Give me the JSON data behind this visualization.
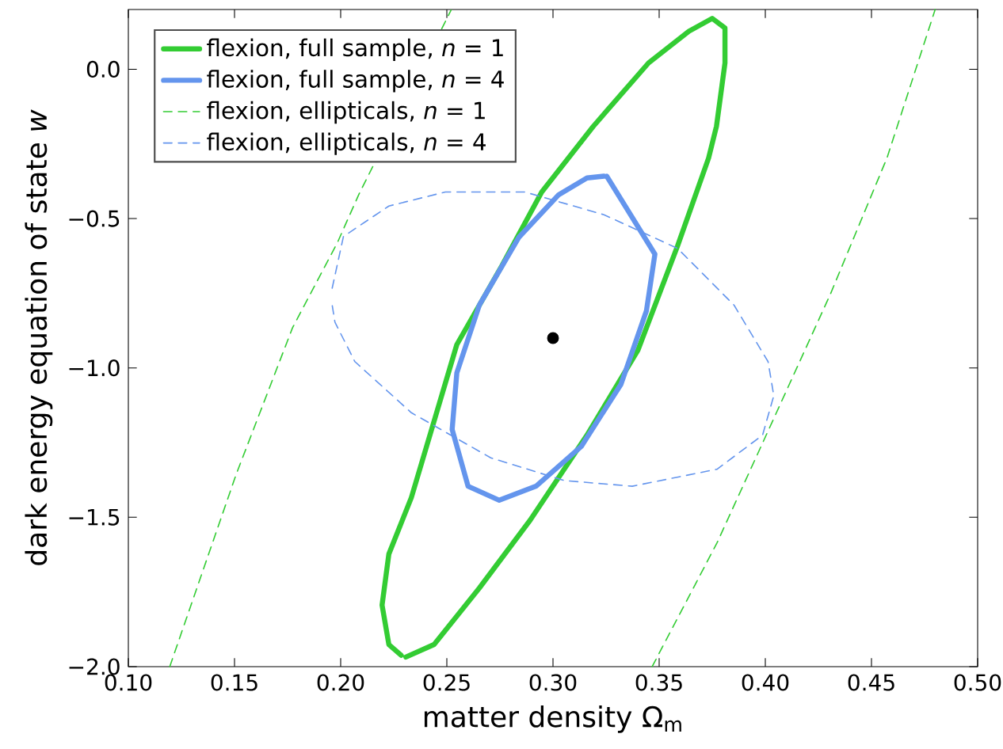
{
  "chart_data": {
    "type": "line",
    "xlabel": "matter density Ω$_{m}$",
    "ylabel": "dark energy equation of state *w*",
    "xlim": [
      0.1,
      0.5
    ],
    "ylim": [
      -2.0,
      0.2
    ],
    "xticks": [
      {
        "value": 0.1,
        "label": "0.10"
      },
      {
        "value": 0.15,
        "label": "0.15"
      },
      {
        "value": 0.2,
        "label": "0.20"
      },
      {
        "value": 0.25,
        "label": "0.25"
      },
      {
        "value": 0.3,
        "label": "0.30"
      },
      {
        "value": 0.35,
        "label": "0.35"
      },
      {
        "value": 0.4,
        "label": "0.40"
      },
      {
        "value": 0.45,
        "label": "0.45"
      },
      {
        "value": 0.5,
        "label": "0.50"
      }
    ],
    "yticks": [
      {
        "value": -2.0,
        "label": "−2.0"
      },
      {
        "value": -1.5,
        "label": "−1.5"
      },
      {
        "value": -1.0,
        "label": "−1.0"
      },
      {
        "value": -0.5,
        "label": "−0.5"
      },
      {
        "value": 0.0,
        "label": "0.0"
      }
    ],
    "grid": false,
    "legend": "top left",
    "series": [
      {
        "name": "flexion, full sample, *n* = 1",
        "color": "#33cc33",
        "line_style": "solid",
        "x": [
          0.2307,
          0.244,
          0.2653,
          0.2893,
          0.316,
          0.34,
          0.3587,
          0.3733,
          0.377,
          0.381,
          0.381,
          0.375,
          0.364,
          0.345,
          0.319,
          0.2947,
          0.276,
          0.2547,
          0.2333,
          0.2227,
          0.2195,
          0.2227,
          0.2285
        ],
        "values": [
          -1.968,
          -1.926,
          -1.737,
          -1.509,
          -1.225,
          -0.941,
          -0.591,
          -0.297,
          -0.191,
          0.021,
          0.138,
          0.17,
          0.127,
          0.021,
          -0.191,
          -0.411,
          -0.657,
          -0.922,
          -1.434,
          -1.623,
          -1.794,
          -1.926,
          -1.962
        ]
      },
      {
        "name": "flexion, full sample, *n* = 4",
        "color": "#6495ed",
        "line_style": "solid",
        "x": [
          0.3253,
          0.348,
          0.344,
          0.332,
          0.3133,
          0.292,
          0.2747,
          0.26,
          0.2525,
          0.2547,
          0.2653,
          0.284,
          0.3027,
          0.316,
          0.324
        ],
        "values": [
          -0.358,
          -0.619,
          -0.809,
          -1.055,
          -1.263,
          -1.396,
          -1.443,
          -1.396,
          -1.206,
          -1.017,
          -0.79,
          -0.562,
          -0.42,
          -0.364,
          -0.358
        ]
      },
      {
        "name": "flexion, ellipticals, *n* = 1",
        "color": "#33cc33",
        "line_style": "dashed",
        "x": [
          0.1195,
          0.1507,
          0.1773,
          0.1985,
          0.2085,
          0.252
        ],
        "values": [
          -2.0,
          -1.358,
          -0.866,
          -0.58,
          -0.42,
          0.198
        ]
      },
      {
        "color": "#33cc33",
        "line_style": "dashed",
        "x": [
          0.3467,
          0.3773,
          0.404,
          0.4307,
          0.4573,
          0.48
        ],
        "values": [
          -2.0,
          -1.585,
          -1.169,
          -0.752,
          -0.297,
          0.2
        ]
      },
      {
        "name": "flexion, ellipticals, *n* = 4",
        "color": "#6495ed",
        "line_style": "dashed",
        "x": [
          0.196,
          0.2013,
          0.2227,
          0.2493,
          0.2867,
          0.324,
          0.3587,
          0.3853,
          0.4013,
          0.404,
          0.3987,
          0.3773,
          0.3373,
          0.3053,
          0.2707,
          0.2333,
          0.2067,
          0.1973,
          0.196
        ],
        "values": [
          -0.733,
          -0.56,
          -0.458,
          -0.411,
          -0.411,
          -0.487,
          -0.6,
          -0.79,
          -0.979,
          -1.093,
          -1.225,
          -1.339,
          -1.396,
          -1.377,
          -1.301,
          -1.15,
          -0.979,
          -0.847,
          -0.79
        ]
      },
      {
        "type": "scatter",
        "color": "#000000",
        "x": [
          0.3
        ],
        "values": [
          -0.9
        ]
      }
    ]
  }
}
